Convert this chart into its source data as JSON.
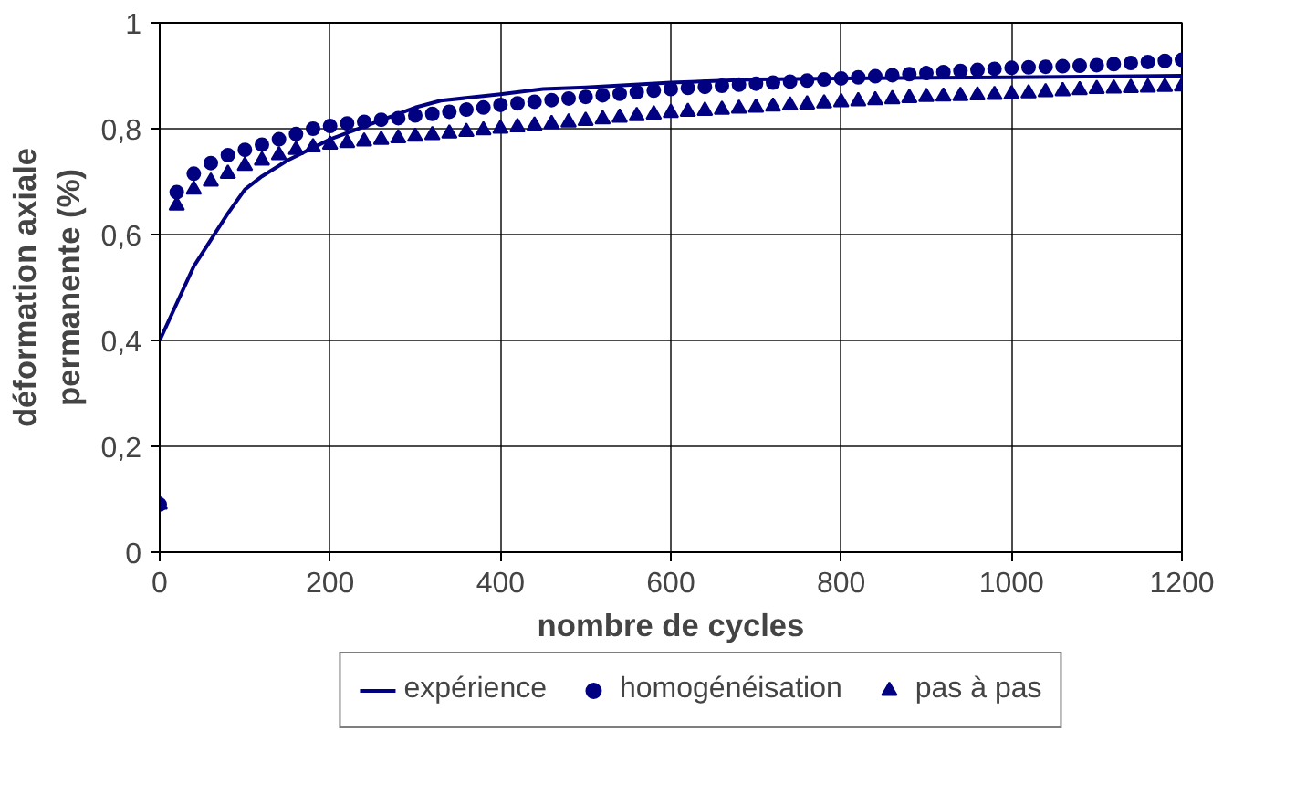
{
  "chart_data": {
    "type": "line",
    "xlabel": "nombre de cycles",
    "ylabel": "déformation axiale\npermanente (%)",
    "xlim": [
      0,
      1200
    ],
    "ylim": [
      0,
      1
    ],
    "xticks": [
      0,
      200,
      400,
      600,
      800,
      1000,
      1200
    ],
    "yticks": [
      0,
      {
        "value": 0.2,
        "label": "0,2"
      },
      {
        "value": 0.4,
        "label": "0,4"
      },
      {
        "value": 0.6,
        "label": "0,6"
      },
      {
        "value": 0.8,
        "label": "0,8"
      },
      1
    ],
    "grid": true,
    "legend": "bottom",
    "series": [
      {
        "name": "expérience",
        "marker": "none",
        "line_style": "solid",
        "color": "#000080",
        "x": [
          0,
          20,
          40,
          60,
          80,
          100,
          120,
          150,
          200,
          250,
          300,
          330,
          400,
          450,
          500,
          600,
          700,
          800,
          1000,
          1200
        ],
        "values": [
          0.4,
          0.47,
          0.54,
          0.59,
          0.64,
          0.685,
          0.71,
          0.74,
          0.78,
          0.81,
          0.84,
          0.853,
          0.865,
          0.875,
          0.878,
          0.887,
          0.893,
          0.895,
          0.897,
          0.9
        ]
      },
      {
        "name": "homogénéisation",
        "type": "scatter",
        "marker": "circle",
        "color": "#000080",
        "x": [
          0,
          20,
          40,
          60,
          80,
          100,
          120,
          140,
          160,
          180,
          200,
          220,
          240,
          260,
          280,
          300,
          320,
          340,
          360,
          380,
          400,
          420,
          440,
          460,
          480,
          500,
          520,
          540,
          560,
          580,
          600,
          620,
          640,
          660,
          680,
          700,
          720,
          740,
          760,
          780,
          800,
          820,
          840,
          860,
          880,
          900,
          920,
          940,
          960,
          980,
          1000,
          1020,
          1040,
          1060,
          1080,
          1100,
          1120,
          1140,
          1160,
          1180,
          1200
        ],
        "values": [
          0.09,
          0.68,
          0.715,
          0.735,
          0.75,
          0.76,
          0.77,
          0.78,
          0.79,
          0.8,
          0.805,
          0.81,
          0.813,
          0.817,
          0.82,
          0.825,
          0.828,
          0.832,
          0.836,
          0.84,
          0.845,
          0.848,
          0.851,
          0.854,
          0.857,
          0.86,
          0.863,
          0.866,
          0.869,
          0.872,
          0.875,
          0.877,
          0.879,
          0.881,
          0.883,
          0.885,
          0.887,
          0.889,
          0.891,
          0.893,
          0.895,
          0.897,
          0.899,
          0.901,
          0.903,
          0.905,
          0.907,
          0.909,
          0.911,
          0.913,
          0.915,
          0.916,
          0.917,
          0.918,
          0.919,
          0.92,
          0.922,
          0.924,
          0.926,
          0.928,
          0.93
        ]
      },
      {
        "name": "pas à pas",
        "type": "scatter",
        "marker": "triangle",
        "color": "#000080",
        "x": [
          0,
          20,
          40,
          60,
          80,
          100,
          120,
          140,
          160,
          180,
          200,
          220,
          240,
          260,
          280,
          300,
          320,
          340,
          360,
          380,
          400,
          420,
          440,
          460,
          480,
          500,
          520,
          540,
          560,
          580,
          600,
          620,
          640,
          660,
          680,
          700,
          720,
          740,
          760,
          780,
          800,
          820,
          840,
          860,
          880,
          900,
          920,
          940,
          960,
          980,
          1000,
          1020,
          1040,
          1060,
          1080,
          1100,
          1120,
          1140,
          1160,
          1180,
          1200
        ],
        "values": [
          0.09,
          0.655,
          0.685,
          0.7,
          0.715,
          0.73,
          0.74,
          0.75,
          0.76,
          0.765,
          0.77,
          0.773,
          0.776,
          0.779,
          0.782,
          0.785,
          0.788,
          0.791,
          0.794,
          0.797,
          0.8,
          0.803,
          0.806,
          0.809,
          0.812,
          0.815,
          0.818,
          0.821,
          0.824,
          0.827,
          0.83,
          0.832,
          0.834,
          0.836,
          0.838,
          0.84,
          0.842,
          0.844,
          0.846,
          0.848,
          0.85,
          0.852,
          0.854,
          0.856,
          0.858,
          0.86,
          0.861,
          0.862,
          0.863,
          0.864,
          0.865,
          0.867,
          0.869,
          0.871,
          0.873,
          0.875,
          0.876,
          0.877,
          0.878,
          0.879,
          0.88
        ]
      }
    ]
  }
}
